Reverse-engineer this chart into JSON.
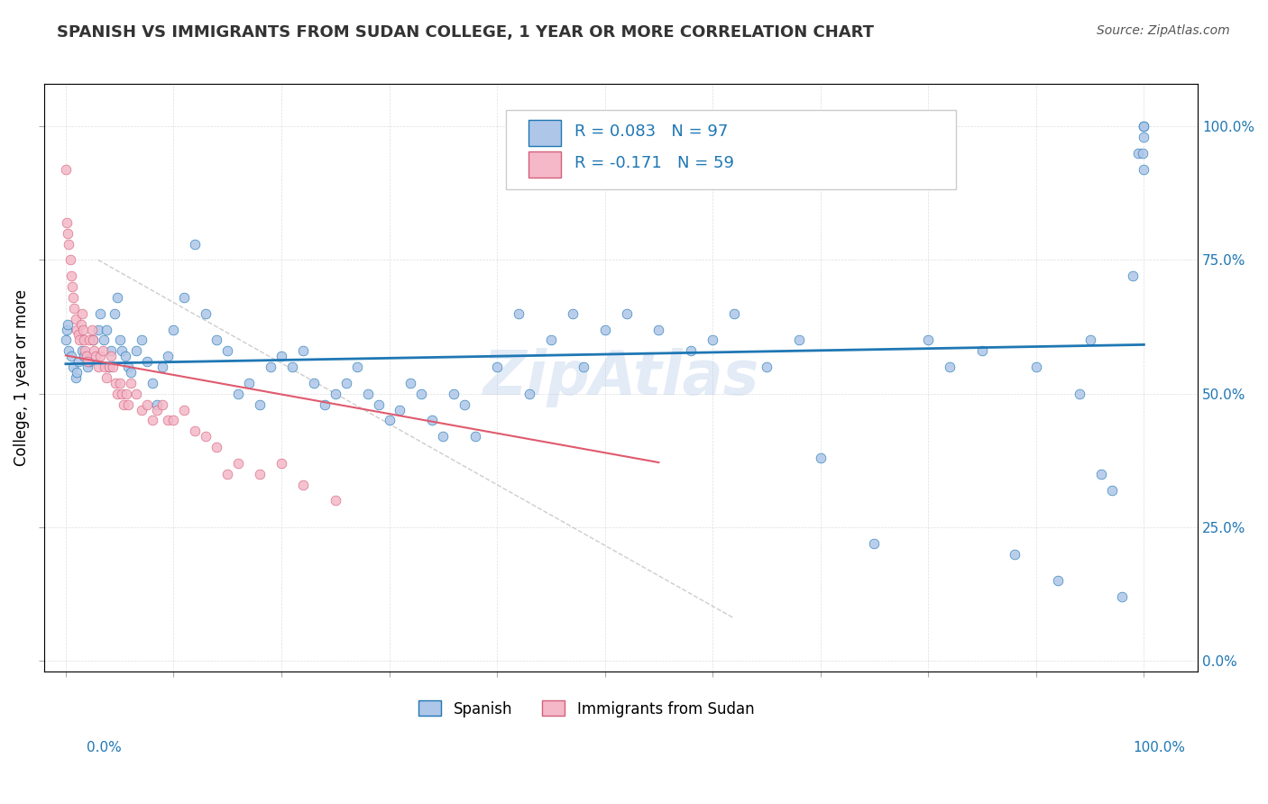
{
  "title": "SPANISH VS IMMIGRANTS FROM SUDAN COLLEGE, 1 YEAR OR MORE CORRELATION CHART",
  "source_text": "Source: ZipAtlas.com",
  "ylabel": "College, 1 year or more",
  "legend1_label": "R = 0.083   N = 97",
  "legend2_label": "R = -0.171   N = 59",
  "legend_series1": "Spanish",
  "legend_series2": "Immigrants from Sudan",
  "blue_color": "#aec6e8",
  "pink_color": "#f4b8c8",
  "trend_blue": "#1f77b4",
  "trend_pink": "#e05a6e",
  "trend_gray": "#b8b8b8",
  "watermark": "ZipAtlas",
  "blue_points_x": [
    0.0,
    0.001,
    0.002,
    0.003,
    0.005,
    0.007,
    0.009,
    0.01,
    0.012,
    0.015,
    0.017,
    0.02,
    0.022,
    0.025,
    0.03,
    0.032,
    0.035,
    0.038,
    0.04,
    0.042,
    0.045,
    0.048,
    0.05,
    0.052,
    0.055,
    0.058,
    0.06,
    0.065,
    0.07,
    0.075,
    0.08,
    0.085,
    0.09,
    0.095,
    0.1,
    0.11,
    0.12,
    0.13,
    0.14,
    0.15,
    0.16,
    0.17,
    0.18,
    0.19,
    0.2,
    0.21,
    0.22,
    0.23,
    0.24,
    0.25,
    0.26,
    0.27,
    0.28,
    0.29,
    0.3,
    0.31,
    0.32,
    0.33,
    0.34,
    0.35,
    0.36,
    0.37,
    0.38,
    0.4,
    0.42,
    0.43,
    0.45,
    0.47,
    0.48,
    0.5,
    0.52,
    0.55,
    0.58,
    0.6,
    0.62,
    0.65,
    0.68,
    0.7,
    0.75,
    0.8,
    0.82,
    0.85,
    0.88,
    0.9,
    0.92,
    0.94,
    0.95,
    0.96,
    0.97,
    0.98,
    0.99,
    0.995,
    0.999,
    1.0,
    1.0,
    1.0,
    1.0
  ],
  "blue_points_y": [
    0.6,
    0.62,
    0.63,
    0.58,
    0.57,
    0.55,
    0.53,
    0.54,
    0.56,
    0.58,
    0.57,
    0.55,
    0.56,
    0.6,
    0.62,
    0.65,
    0.6,
    0.62,
    0.55,
    0.58,
    0.65,
    0.68,
    0.6,
    0.58,
    0.57,
    0.55,
    0.54,
    0.58,
    0.6,
    0.56,
    0.52,
    0.48,
    0.55,
    0.57,
    0.62,
    0.68,
    0.78,
    0.65,
    0.6,
    0.58,
    0.5,
    0.52,
    0.48,
    0.55,
    0.57,
    0.55,
    0.58,
    0.52,
    0.48,
    0.5,
    0.52,
    0.55,
    0.5,
    0.48,
    0.45,
    0.47,
    0.52,
    0.5,
    0.45,
    0.42,
    0.5,
    0.48,
    0.42,
    0.55,
    0.65,
    0.5,
    0.6,
    0.65,
    0.55,
    0.62,
    0.65,
    0.62,
    0.58,
    0.6,
    0.65,
    0.55,
    0.6,
    0.38,
    0.22,
    0.6,
    0.55,
    0.58,
    0.2,
    0.55,
    0.15,
    0.5,
    0.6,
    0.35,
    0.32,
    0.12,
    0.72,
    0.95,
    0.95,
    0.92,
    0.98,
    1.0,
    1.0
  ],
  "pink_points_x": [
    0.0,
    0.001,
    0.002,
    0.003,
    0.004,
    0.005,
    0.006,
    0.007,
    0.008,
    0.009,
    0.01,
    0.012,
    0.013,
    0.014,
    0.015,
    0.016,
    0.017,
    0.018,
    0.019,
    0.02,
    0.022,
    0.024,
    0.025,
    0.026,
    0.028,
    0.03,
    0.032,
    0.034,
    0.036,
    0.038,
    0.04,
    0.042,
    0.044,
    0.046,
    0.048,
    0.05,
    0.052,
    0.054,
    0.056,
    0.058,
    0.06,
    0.065,
    0.07,
    0.075,
    0.08,
    0.085,
    0.09,
    0.095,
    0.1,
    0.11,
    0.12,
    0.13,
    0.14,
    0.15,
    0.16,
    0.18,
    0.2,
    0.22,
    0.25
  ],
  "pink_points_y": [
    0.92,
    0.82,
    0.8,
    0.78,
    0.75,
    0.72,
    0.7,
    0.68,
    0.66,
    0.64,
    0.62,
    0.61,
    0.6,
    0.63,
    0.65,
    0.62,
    0.6,
    0.58,
    0.57,
    0.56,
    0.6,
    0.62,
    0.6,
    0.58,
    0.57,
    0.55,
    0.57,
    0.58,
    0.55,
    0.53,
    0.55,
    0.57,
    0.55,
    0.52,
    0.5,
    0.52,
    0.5,
    0.48,
    0.5,
    0.48,
    0.52,
    0.5,
    0.47,
    0.48,
    0.45,
    0.47,
    0.48,
    0.45,
    0.45,
    0.47,
    0.43,
    0.42,
    0.4,
    0.35,
    0.37,
    0.35,
    0.37,
    0.33,
    0.3
  ]
}
